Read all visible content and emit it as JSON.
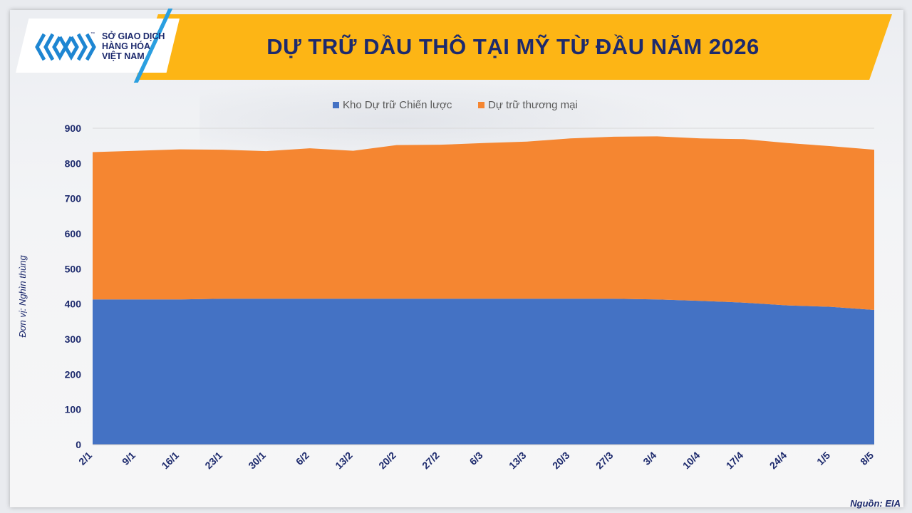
{
  "header": {
    "title": "DỰ TRỮ DẦU THÔ TẠI MỸ TỪ ĐẦU NĂM 2026",
    "logo_lines": [
      "SỞ GIAO DỊCH",
      "HÀNG HÓA",
      "VIỆT NAM"
    ],
    "logo_tm": "™"
  },
  "source_note": "Nguồn: EIA",
  "colors": {
    "banner": "#fdb515",
    "title": "#1d2a6d",
    "series_strategic": "#4472c4",
    "series_commercial": "#f58631",
    "axis_text": "#1d2a6d"
  },
  "chart_data": {
    "type": "area",
    "stacked": true,
    "categories": [
      "2/1",
      "9/1",
      "16/1",
      "23/1",
      "30/1",
      "6/2",
      "13/2",
      "20/2",
      "27/2",
      "6/3",
      "13/3",
      "20/3",
      "27/3",
      "3/4",
      "10/4",
      "17/4",
      "24/4",
      "1/5",
      "8/5"
    ],
    "series": [
      {
        "name": "Kho Dự trữ Chiến lược",
        "color": "#4472c4",
        "values": [
          413,
          413,
          413,
          415,
          415,
          415,
          415,
          415,
          415,
          415,
          415,
          415,
          415,
          413,
          409,
          404,
          396,
          392,
          383
        ]
      },
      {
        "name": "Dự trữ thương mại",
        "color": "#f58631",
        "values": [
          419,
          423,
          427,
          424,
          420,
          428,
          421,
          437,
          438,
          443,
          447,
          456,
          461,
          464,
          462,
          465,
          462,
          457,
          456
        ]
      }
    ],
    "ylabel": "Đơn vị: Nghìn thùng",
    "xlabel": "",
    "ylim": [
      0,
      900
    ],
    "yticks": [
      0,
      100,
      200,
      300,
      400,
      500,
      600,
      700,
      800,
      900
    ],
    "legend_position": "top-center",
    "grid": true
  }
}
